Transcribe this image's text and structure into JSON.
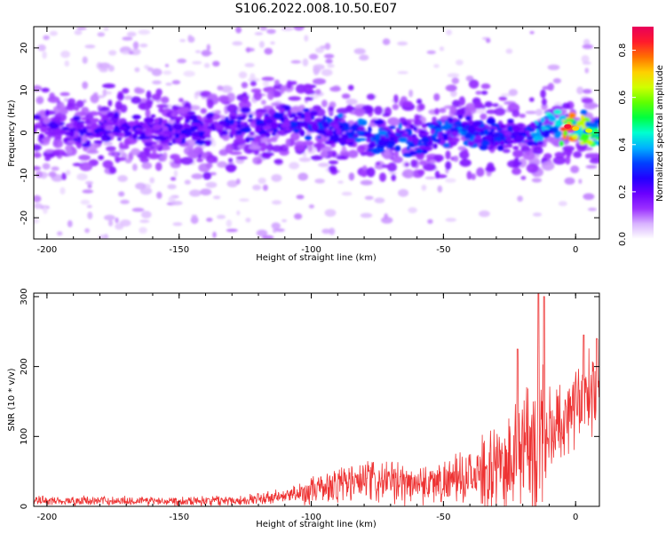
{
  "title": "S106.2022.008.10.50.E07",
  "chart_data": [
    {
      "type": "heatmap",
      "title": "",
      "xlabel": "Height of straight line (km)",
      "ylabel": "Frequency (Hz)",
      "xlim": [
        -205,
        9
      ],
      "ylim": [
        -25,
        25
      ],
      "xticks": [
        -200,
        -150,
        -100,
        -50,
        0
      ],
      "yticks": [
        -20,
        -10,
        0,
        10,
        20
      ],
      "colorbar": {
        "label": "Normalized spectral amplitude",
        "range": [
          0.0,
          0.9
        ],
        "ticks": [
          0.0,
          0.2,
          0.4,
          0.6,
          0.8
        ],
        "colors": [
          "#ffffff",
          "#d9b3ff",
          "#9b30ff",
          "#6a00ff",
          "#2200ff",
          "#0040ff",
          "#00b0ff",
          "#00ffd0",
          "#00ff40",
          "#60ff00",
          "#d0ff00",
          "#ffd000",
          "#ff7000",
          "#ff1a2c",
          "#e8005a"
        ]
      },
      "ridge": [
        {
          "x": -205,
          "f": 1.0,
          "level": 0.22
        },
        {
          "x": -180,
          "f": 0.5,
          "level": 0.24
        },
        {
          "x": -150,
          "f": 0.5,
          "level": 0.25
        },
        {
          "x": -130,
          "f": 1.5,
          "level": 0.27
        },
        {
          "x": -110,
          "f": 2.5,
          "level": 0.3
        },
        {
          "x": -95,
          "f": 2.0,
          "level": 0.33
        },
        {
          "x": -85,
          "f": 0.0,
          "level": 0.35
        },
        {
          "x": -70,
          "f": -1.5,
          "level": 0.34
        },
        {
          "x": -55,
          "f": -1.0,
          "level": 0.33
        },
        {
          "x": -45,
          "f": 1.0,
          "level": 0.36
        },
        {
          "x": -30,
          "f": -1.0,
          "level": 0.3
        },
        {
          "x": -20,
          "f": -1.0,
          "level": 0.28
        },
        {
          "x": -10,
          "f": 1.5,
          "level": 0.5
        },
        {
          "x": -3,
          "f": 1.5,
          "level": 0.85
        },
        {
          "x": 0,
          "f": 1.0,
          "level": 0.7
        },
        {
          "x": 5,
          "f": 0.5,
          "level": 0.65
        },
        {
          "x": 9,
          "f": 0.0,
          "level": 0.55
        }
      ],
      "background_extent": {
        "ymin": -25,
        "ymax": 25,
        "xmax_dense": -90
      }
    },
    {
      "type": "line",
      "title": "",
      "xlabel": "Height of straight line (km)",
      "ylabel": "SNR (10 * v/v)",
      "xlim": [
        -205,
        9
      ],
      "ylim": [
        0,
        305
      ],
      "xticks": [
        -200,
        -150,
        -100,
        -50,
        0
      ],
      "yticks": [
        0,
        100,
        200,
        300
      ],
      "color": "#ee3333",
      "envelope": [
        {
          "x": -205,
          "base": 8,
          "amp": 8
        },
        {
          "x": -150,
          "base": 8,
          "amp": 8
        },
        {
          "x": -125,
          "base": 9,
          "amp": 9
        },
        {
          "x": -110,
          "base": 14,
          "amp": 14
        },
        {
          "x": -100,
          "base": 22,
          "amp": 22
        },
        {
          "x": -90,
          "base": 32,
          "amp": 35
        },
        {
          "x": -80,
          "base": 35,
          "amp": 38
        },
        {
          "x": -65,
          "base": 33,
          "amp": 35
        },
        {
          "x": -50,
          "base": 35,
          "amp": 35
        },
        {
          "x": -40,
          "base": 42,
          "amp": 45
        },
        {
          "x": -30,
          "base": 55,
          "amp": 70
        },
        {
          "x": -22,
          "base": 75,
          "amp": 95
        },
        {
          "x": -15,
          "base": 95,
          "amp": 130
        },
        {
          "x": -8,
          "base": 110,
          "amp": 85
        },
        {
          "x": 0,
          "base": 150,
          "amp": 70
        },
        {
          "x": 9,
          "base": 175,
          "amp": 70
        }
      ],
      "peaks": [
        {
          "x": -14,
          "y": 305
        },
        {
          "x": -22,
          "y": 225
        },
        {
          "x": -12,
          "y": 300
        },
        {
          "x": 3,
          "y": 245
        },
        {
          "x": 8,
          "y": 240
        }
      ]
    }
  ]
}
